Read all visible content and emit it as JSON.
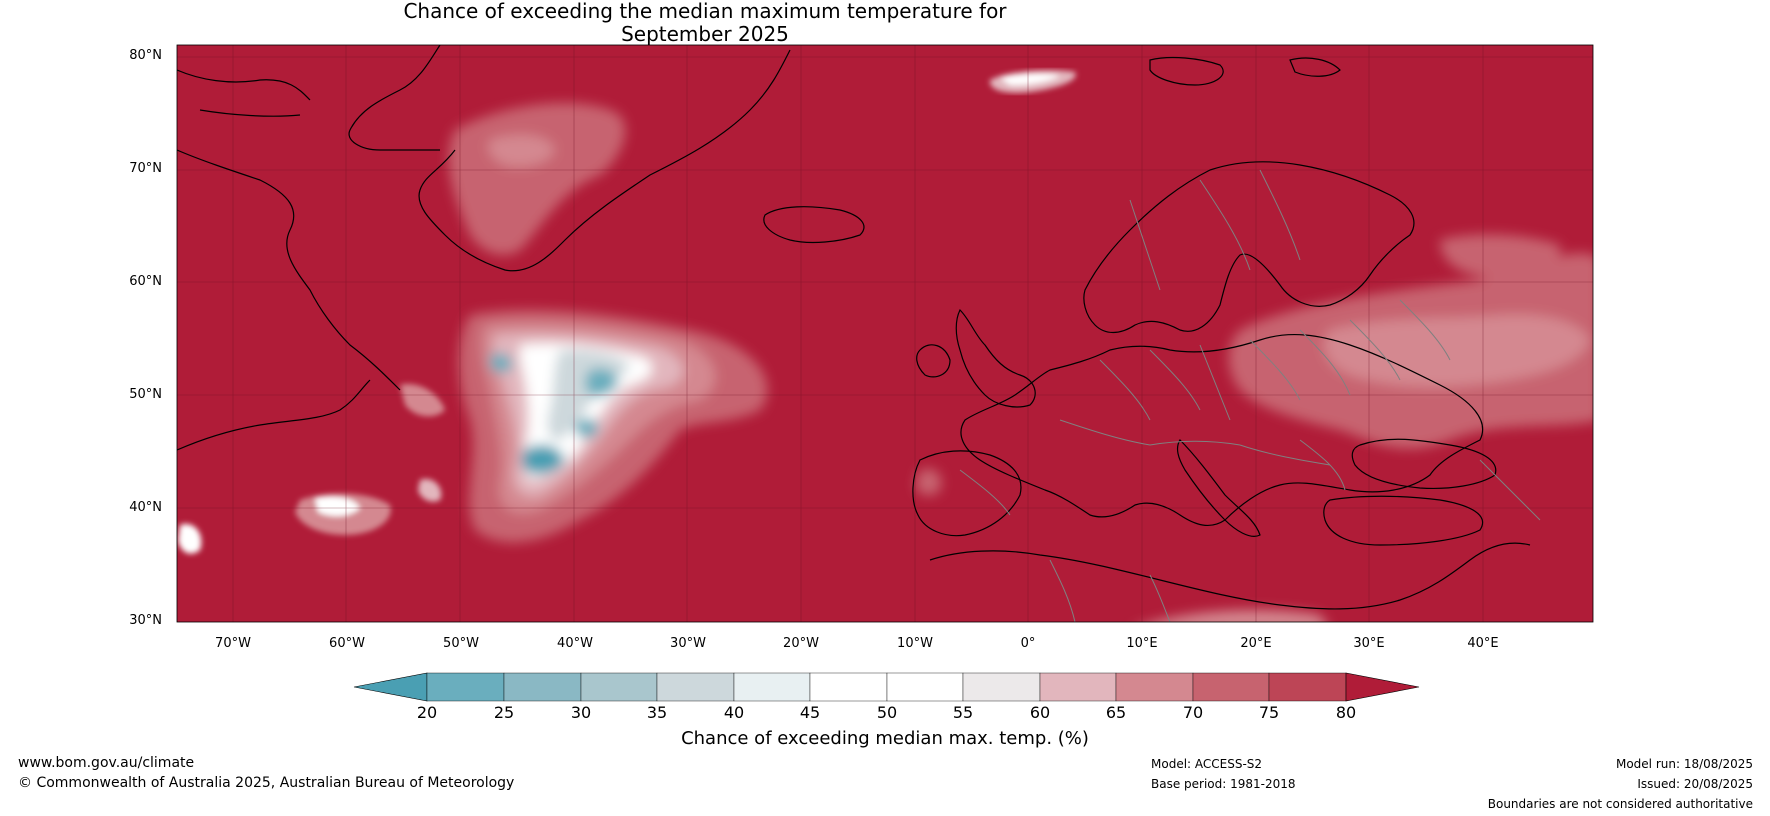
{
  "title": {
    "line1": "Chance of exceeding the median maximum temperature for",
    "line2": "September 2025"
  },
  "map": {
    "lat_labels": [
      "80°N",
      "70°N",
      "60°N",
      "50°N",
      "40°N",
      "30°N"
    ],
    "lon_labels": [
      "70°W",
      "60°W",
      "50°W",
      "40°W",
      "30°W",
      "20°W",
      "10°W",
      "0°",
      "10°E",
      "20°E",
      "30°E",
      "40°E"
    ],
    "background_color": "#b01c38",
    "land_outline_color": "#000000",
    "border_color": "#808080"
  },
  "colorbar": {
    "ticks": [
      "20",
      "25",
      "30",
      "35",
      "40",
      "45",
      "50",
      "55",
      "60",
      "65",
      "70",
      "75",
      "80"
    ],
    "colors": [
      "#4a9fb3",
      "#6aaebe",
      "#8ab8c4",
      "#a9c6cd",
      "#cdd8dc",
      "#e8f0f2",
      "#ffffff",
      "#ffffff",
      "#ece9ea",
      "#e2b6bd",
      "#d48890",
      "#c7636f",
      "#bd4556",
      "#b01c38"
    ],
    "label": "Chance of exceeding median max. temp. (%)"
  },
  "footer": {
    "website": "www.bom.gov.au/climate",
    "copyright": "© Commonwealth of Australia 2025, Australian Bureau of Meteorology",
    "model": "Model: ACCESS-S2",
    "base_period": "Base period: 1981-2018",
    "model_run": "Model run: 18/08/2025",
    "issued": "Issued: 20/08/2025",
    "disclaimer": "Boundaries are not considered authoritative"
  }
}
